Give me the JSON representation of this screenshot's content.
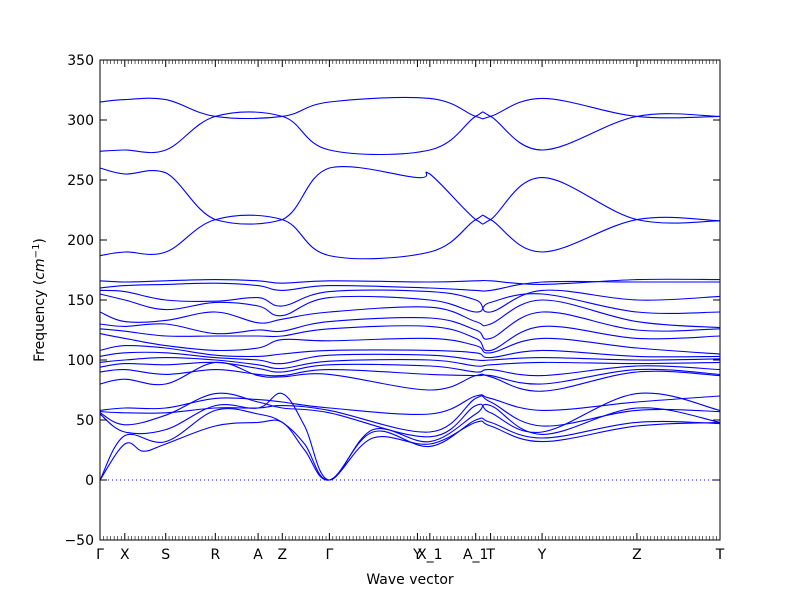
{
  "chart_data": {
    "type": "line",
    "xlabel": "Wave vector",
    "ylabel": "Frequency (cm⁻¹)",
    "ylabel_parts": {
      "prefix": "Frequency (",
      "unit": "cm",
      "exponent": "−1",
      "suffix": ")"
    },
    "ylim": [
      -50,
      350
    ],
    "yticks": [
      -50,
      0,
      50,
      100,
      150,
      200,
      250,
      300,
      350
    ],
    "xlim": [
      0,
      100
    ],
    "xticks": [
      {
        "label": "Γ",
        "x": 0
      },
      {
        "label": "X",
        "x": 4
      },
      {
        "label": "S",
        "x": 10.6
      },
      {
        "label": "R",
        "x": 18.6
      },
      {
        "label": "A",
        "x": 25.5
      },
      {
        "label": "Z",
        "x": 29.4
      },
      {
        "label": "Γ",
        "x": 37
      },
      {
        "label": "Y",
        "x": 51.2
      },
      {
        "label": "X_1",
        "x": 53.2
      },
      {
        "label": "A_1",
        "x": 60.6
      },
      {
        "label": "T",
        "x": 63
      },
      {
        "label": "Y",
        "x": 71.3
      },
      {
        "label": "Z",
        "x": 86.6
      },
      {
        "label": "T",
        "x": 100
      }
    ],
    "line_color": "#0000ff",
    "zero_line": {
      "y": 0,
      "style": "dotted",
      "color": "#0000ff"
    },
    "grid": false,
    "series": [
      {
        "x": [
          0,
          4,
          10.6,
          18.6,
          29.4,
          37,
          53.2,
          60.6,
          63,
          71.3,
          86.6,
          100
        ],
        "y": [
          315,
          317,
          317,
          303,
          303,
          315,
          318,
          303,
          303,
          318,
          303,
          303
        ]
      },
      {
        "x": [
          0,
          4,
          10.6,
          18.6,
          29.4,
          37,
          53.2,
          60.6,
          63,
          71.3,
          86.6,
          100
        ],
        "y": [
          274,
          275,
          275,
          303,
          303,
          275,
          275,
          303,
          303,
          275,
          303,
          303
        ]
      },
      {
        "x": [
          0,
          4,
          10.6,
          18.6,
          29.4,
          37,
          51.2,
          53.2,
          60.6,
          63,
          71.3,
          86.6,
          100
        ],
        "y": [
          260,
          255,
          256,
          217,
          217,
          260,
          252,
          255,
          217,
          217,
          252,
          217,
          216
        ]
      },
      {
        "x": [
          0,
          4,
          10.6,
          18.6,
          29.4,
          37,
          53.2,
          60.6,
          63,
          71.3,
          86.6,
          100
        ],
        "y": [
          187,
          190,
          190,
          217,
          217,
          187,
          190,
          217,
          217,
          190,
          217,
          216
        ]
      },
      {
        "x": [
          0,
          4,
          10.6,
          18.6,
          25.5,
          29.4,
          37,
          53.2,
          60.6,
          63,
          71.3,
          86.6,
          100
        ],
        "y": [
          166,
          165,
          166,
          167,
          166,
          164,
          166,
          165,
          166,
          166,
          163,
          167,
          167
        ]
      },
      {
        "x": [
          0,
          4,
          10.6,
          18.6,
          25.5,
          29.4,
          37,
          53.2,
          60.6,
          63,
          71.3,
          86.6,
          100
        ],
        "y": [
          160,
          162,
          163,
          164,
          162,
          158,
          162,
          160,
          158,
          158,
          165,
          165,
          165
        ]
      },
      {
        "x": [
          0,
          4,
          10.6,
          18.6,
          25.5,
          29.4,
          37,
          53.2,
          60.6,
          63,
          71.3,
          86.6,
          100
        ],
        "y": [
          158,
          157,
          150,
          149,
          152,
          145,
          157,
          157,
          150,
          140,
          158,
          150,
          153
        ]
      },
      {
        "x": [
          0,
          4,
          10.6,
          18.6,
          25.5,
          29.4,
          37,
          53.2,
          60.6,
          63,
          71.3,
          86.6,
          100
        ],
        "y": [
          155,
          150,
          142,
          148,
          145,
          137,
          152,
          150,
          140,
          148,
          155,
          140,
          140
        ]
      },
      {
        "x": [
          0,
          4,
          10.6,
          18.6,
          25.5,
          29.4,
          37,
          53.2,
          60.6,
          63,
          71.3,
          86.6,
          100
        ],
        "y": [
          140,
          132,
          133,
          140,
          131,
          134,
          140,
          144,
          132,
          130,
          150,
          132,
          127
        ]
      },
      {
        "x": [
          0,
          4,
          10.6,
          18.6,
          25.5,
          29.4,
          37,
          53.2,
          60.6,
          63,
          71.3,
          86.6,
          100
        ],
        "y": [
          130,
          128,
          130,
          122,
          125,
          124,
          132,
          135,
          125,
          118,
          140,
          125,
          126
        ]
      },
      {
        "x": [
          0,
          4,
          10.6,
          18.6,
          25.5,
          29.4,
          37,
          53.2,
          60.6,
          63,
          71.3,
          86.6,
          100
        ],
        "y": [
          126,
          124,
          120,
          120,
          120,
          120,
          126,
          128,
          118,
          108,
          128,
          118,
          120
        ]
      },
      {
        "x": [
          0,
          4,
          10.6,
          18.6,
          25.5,
          29.4,
          37,
          53.2,
          60.6,
          63,
          71.3,
          86.6,
          100
        ],
        "y": [
          122,
          118,
          112,
          108,
          110,
          117,
          116,
          118,
          112,
          106,
          118,
          110,
          105
        ]
      },
      {
        "x": [
          0,
          4,
          10.6,
          18.6,
          25.5,
          29.4,
          37,
          53.2,
          60.6,
          63,
          71.3,
          86.6,
          100
        ],
        "y": [
          108,
          112,
          110,
          104,
          103,
          105,
          108,
          108,
          106,
          102,
          108,
          103,
          103
        ]
      },
      {
        "x": [
          0,
          4,
          10.6,
          18.6,
          25.5,
          29.4,
          37,
          53.2,
          60.6,
          63,
          71.3,
          86.6,
          100
        ],
        "y": [
          103,
          106,
          106,
          102,
          100,
          97,
          104,
          104,
          100,
          100,
          102,
          100,
          101
        ]
      },
      {
        "x": [
          0,
          4,
          10.6,
          18.6,
          25.5,
          29.4,
          37,
          53.2,
          60.6,
          63,
          71.3,
          86.6,
          100
        ],
        "y": [
          98,
          100,
          102,
          100,
          96,
          93,
          99,
          100,
          95,
          96,
          98,
          97,
          98
        ]
      },
      {
        "x": [
          0,
          4,
          10.6,
          18.6,
          25.5,
          29.4,
          37,
          53.2,
          60.6,
          63,
          71.3,
          86.6,
          100
        ],
        "y": [
          94,
          97,
          96,
          98,
          93,
          90,
          96,
          95,
          90,
          92,
          87,
          95,
          92
        ]
      },
      {
        "x": [
          0,
          4,
          10.6,
          18.6,
          25.5,
          29.4,
          37,
          53.2,
          60.6,
          63,
          71.3,
          86.6,
          100
        ],
        "y": [
          90,
          92,
          88,
          92,
          88,
          87,
          92,
          88,
          87,
          87,
          80,
          92,
          88
        ]
      },
      {
        "x": [
          0,
          4,
          10.6,
          18.6,
          25.5,
          29.4,
          37,
          53.2,
          60.6,
          63,
          71.3,
          86.6,
          100
        ],
        "y": [
          80,
          84,
          80,
          98,
          87,
          86,
          88,
          75,
          87,
          86,
          74,
          90,
          87
        ]
      },
      {
        "x": [
          0,
          4,
          10.6,
          18.6,
          25.5,
          29.4,
          37,
          53.2,
          60.6,
          63,
          71.3,
          86.6,
          100
        ],
        "y": [
          58,
          60,
          60,
          68,
          67,
          65,
          60,
          55,
          70,
          68,
          58,
          65,
          70
        ]
      },
      {
        "x": [
          0,
          4,
          10.6,
          18.6,
          25.5,
          29.4,
          37,
          53.2,
          60.6,
          63,
          71.3,
          86.6,
          100
        ],
        "y": [
          57,
          56,
          56,
          60,
          60,
          62,
          58,
          40,
          68,
          65,
          45,
          58,
          57
        ]
      },
      {
        "x": [
          0,
          4,
          10.6,
          18.6,
          25.5,
          29.4,
          37,
          53.2,
          60.6,
          63,
          71.3,
          86.6,
          100
        ],
        "y": [
          56,
          46,
          54,
          72,
          65,
          60,
          56,
          36,
          62,
          56,
          40,
          72,
          58
        ]
      },
      {
        "x": [
          0,
          4,
          10.6,
          18.6,
          25.5,
          29.4,
          33,
          37,
          44,
          53.2,
          60.6,
          63,
          71.3,
          86.6,
          100
        ],
        "y": [
          55,
          40,
          42,
          62,
          60,
          72,
          45,
          0,
          42,
          32,
          55,
          62,
          38,
          60,
          48
        ]
      },
      {
        "x": [
          0,
          4,
          10.6,
          18.6,
          25.5,
          29.4,
          33,
          37,
          44,
          53.2,
          60.6,
          63,
          71.3,
          86.6,
          100
        ],
        "y": [
          0,
          37,
          32,
          58,
          55,
          48,
          30,
          0,
          40,
          28,
          50,
          48,
          35,
          48,
          47
        ]
      },
      {
        "x": [
          0,
          4,
          7,
          10.6,
          18.6,
          25.5,
          29.4,
          33,
          37,
          44,
          53.2,
          60.6,
          63,
          71.3,
          86.6,
          100
        ],
        "y": [
          0,
          30,
          24,
          30,
          45,
          48,
          48,
          25,
          0,
          35,
          30,
          48,
          45,
          32,
          45,
          48
        ]
      }
    ]
  }
}
